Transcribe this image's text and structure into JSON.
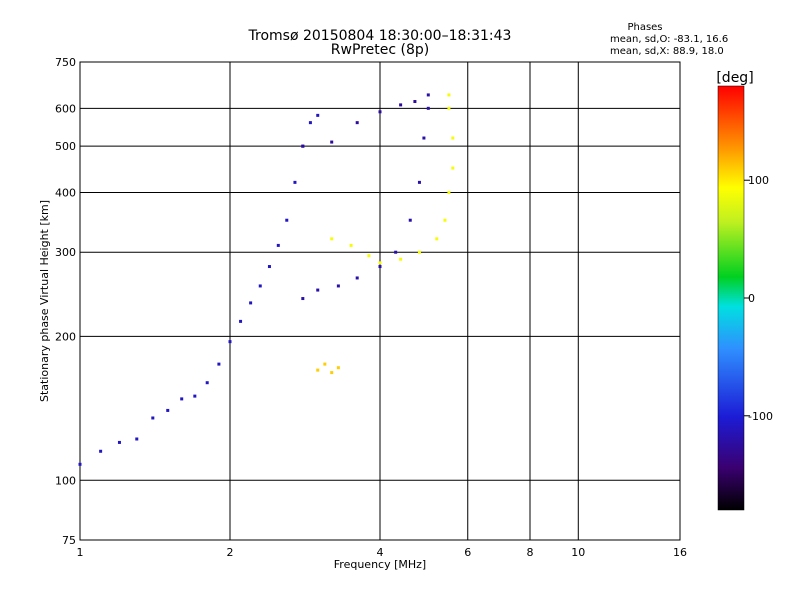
{
  "chart_data": {
    "type": "scatter",
    "title": "Tromsø 20150804 18:30:00–18:31:43",
    "subtitle": "RwPretec (8p)",
    "stats": {
      "heading": "Phases",
      "line1": "mean, sd,O:  -83.1, 16.6",
      "line2": "mean, sd,X:  88.9, 18.0"
    },
    "xlabel": "Frequency [MHz]",
    "ylabel": "Stationary phase Virtual Height [km]",
    "x_scale": "log",
    "y_scale": "log",
    "xlim": [
      1,
      16
    ],
    "ylim": [
      75,
      750
    ],
    "x_ticks": [
      1,
      2,
      4,
      6,
      8,
      10,
      16
    ],
    "x_tick_labels": [
      "1",
      "2",
      "4",
      "6",
      "8",
      "10",
      "16"
    ],
    "y_ticks": [
      75,
      100,
      200,
      300,
      400,
      500,
      600,
      750
    ],
    "y_tick_labels": [
      "75",
      "100",
      "200",
      "300",
      "400",
      "500",
      "600",
      "750"
    ],
    "grid": true,
    "colorbar": {
      "label": "[deg]",
      "range": [
        -180,
        180
      ],
      "ticks": [
        100,
        0,
        -100
      ],
      "tick_labels": [
        "100",
        "0",
        "-100"
      ],
      "placement": "right"
    },
    "series": [
      {
        "trace": "o-mode blue/cyan trace (lower)",
        "phase_deg": -110,
        "points": [
          [
            1.0,
            108
          ],
          [
            1.1,
            115
          ],
          [
            1.2,
            120
          ],
          [
            1.3,
            122
          ],
          [
            1.4,
            135
          ],
          [
            1.5,
            140
          ],
          [
            1.6,
            148
          ],
          [
            1.7,
            150
          ],
          [
            1.8,
            160
          ],
          [
            1.9,
            175
          ],
          [
            2.0,
            195
          ],
          [
            2.1,
            215
          ],
          [
            2.2,
            235
          ],
          [
            2.3,
            255
          ],
          [
            2.4,
            280
          ],
          [
            2.5,
            310
          ],
          [
            2.6,
            350
          ],
          [
            2.7,
            420
          ],
          [
            2.8,
            500
          ],
          [
            2.9,
            560
          ],
          [
            3.0,
            580
          ]
        ]
      },
      {
        "trace": "o-mode upper curve",
        "phase_deg": -120,
        "points": [
          [
            2.8,
            240
          ],
          [
            3.0,
            250
          ],
          [
            3.3,
            255
          ],
          [
            3.6,
            265
          ],
          [
            4.0,
            280
          ],
          [
            4.3,
            300
          ],
          [
            4.6,
            350
          ],
          [
            4.8,
            420
          ],
          [
            4.9,
            520
          ],
          [
            5.0,
            600
          ],
          [
            5.0,
            640
          ]
        ]
      },
      {
        "trace": "o-mode F2 top",
        "phase_deg": -125,
        "points": [
          [
            2.8,
            500
          ],
          [
            3.2,
            510
          ],
          [
            3.6,
            560
          ],
          [
            4.0,
            590
          ],
          [
            4.4,
            610
          ],
          [
            4.7,
            620
          ]
        ]
      },
      {
        "trace": "x-mode yellow trace",
        "phase_deg": 90,
        "points": [
          [
            3.2,
            320
          ],
          [
            3.5,
            310
          ],
          [
            3.8,
            295
          ],
          [
            4.0,
            285
          ],
          [
            4.4,
            290
          ],
          [
            4.8,
            300
          ],
          [
            5.2,
            320
          ],
          [
            5.4,
            350
          ],
          [
            5.5,
            400
          ],
          [
            5.6,
            450
          ],
          [
            5.6,
            520
          ],
          [
            5.5,
            600
          ],
          [
            5.5,
            640
          ]
        ]
      },
      {
        "trace": "x-mode E-region patch",
        "phase_deg": 110,
        "points": [
          [
            3.0,
            170
          ],
          [
            3.1,
            175
          ],
          [
            3.2,
            168
          ],
          [
            3.3,
            172
          ]
        ]
      }
    ]
  }
}
